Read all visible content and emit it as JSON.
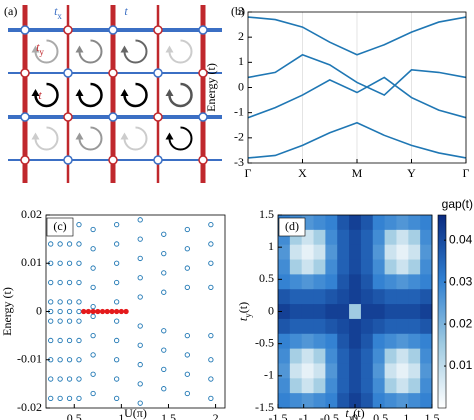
{
  "diagram": {
    "panel_label": "(a)",
    "hop_labels": [
      {
        "base": "t",
        "sub": "x"
      },
      {
        "base": "t"
      },
      {
        "base": "t",
        "sub": "y"
      },
      {
        "base": "t"
      }
    ]
  },
  "chart_data": [
    {
      "type": "line",
      "panel_label": "(b)",
      "ylabel": "Energy (t)",
      "x": [
        0,
        0.5,
        1,
        1.5,
        2,
        2.5,
        3,
        3.5,
        4
      ],
      "xlim": [
        0,
        4
      ],
      "xticks": [
        {
          "value": 0,
          "label": "Γ"
        },
        {
          "value": 1,
          "label": "X"
        },
        {
          "value": 2,
          "label": "M"
        },
        {
          "value": 3,
          "label": "Y"
        },
        {
          "value": 4,
          "label": "Γ"
        }
      ],
      "xgrid": true,
      "ylim": [
        -3,
        3
      ],
      "yticks": [
        -3,
        -2,
        -1,
        0,
        1,
        2,
        3
      ],
      "series": [
        {
          "color": "#1f77b4",
          "values": [
            2.8,
            2.7,
            2.4,
            1.8,
            1.3,
            1.7,
            2.2,
            2.6,
            2.8
          ]
        },
        {
          "color": "#1f77b4",
          "values": [
            0.4,
            0.6,
            1.3,
            0.9,
            0.2,
            -0.3,
            0.7,
            0.6,
            0.4
          ]
        },
        {
          "color": "#1f77b4",
          "values": [
            -1.2,
            -0.8,
            -0.3,
            0.3,
            -0.2,
            0.4,
            -0.4,
            -0.9,
            -1.2
          ]
        },
        {
          "color": "#1f77b4",
          "values": [
            -2.8,
            -2.7,
            -2.3,
            -1.8,
            -1.4,
            -1.9,
            -2.3,
            -2.6,
            -2.8
          ]
        }
      ]
    },
    {
      "type": "scatter",
      "panel_label": "(c)",
      "ylabel": "Energy (t)",
      "xlabel": "U(π)",
      "xlim": [
        0.2,
        2.1
      ],
      "xticks": [
        0.5,
        1,
        1.5,
        2
      ],
      "ylim": [
        -0.02,
        0.02
      ],
      "yticks": [
        -0.02,
        -0.01,
        0,
        0.01,
        0.02
      ],
      "series": [
        {
          "color": "#1f77b4",
          "x": 0.25,
          "values": [
            -0.018,
            -0.014,
            -0.01,
            -0.006,
            -0.002,
            0,
            0.002,
            0.006,
            0.01,
            0.014,
            0.018
          ]
        },
        {
          "color": "#1f77b4",
          "x": 0.35,
          "values": [
            -0.018,
            -0.014,
            -0.01,
            -0.006,
            -0.002,
            0,
            0.002,
            0.006,
            0.01,
            0.014,
            0.018
          ]
        },
        {
          "color": "#1f77b4",
          "x": 0.45,
          "values": [
            -0.018,
            -0.014,
            -0.01,
            -0.006,
            -0.002,
            0,
            0.002,
            0.006,
            0.01,
            0.014,
            0.018
          ]
        },
        {
          "color": "#1f77b4",
          "x": 0.55,
          "values": [
            -0.018,
            -0.014,
            -0.01,
            -0.006,
            -0.002,
            0,
            0.002,
            0.006,
            0.01,
            0.014,
            0.018
          ]
        },
        {
          "color": "#1f77b4",
          "x": 0.7,
          "values": [
            -0.017,
            -0.013,
            -0.009,
            -0.005,
            -0.001,
            0.001,
            0.005,
            0.009,
            0.013,
            0.017
          ]
        },
        {
          "color": "#1f77b4",
          "x": 0.95,
          "values": [
            -0.018,
            -0.014,
            -0.01,
            -0.006,
            -0.002,
            0.002,
            0.006,
            0.01,
            0.014,
            0.018
          ]
        },
        {
          "color": "#1f77b4",
          "x": 1.2,
          "values": [
            -0.019,
            -0.015,
            -0.011,
            -0.007,
            -0.003,
            0.003,
            0.007,
            0.011,
            0.015,
            0.019
          ]
        },
        {
          "color": "#1f77b4",
          "x": 1.45,
          "values": [
            -0.016,
            -0.012,
            -0.008,
            -0.004,
            0.004,
            0.008,
            0.012,
            0.016
          ]
        },
        {
          "color": "#1f77b4",
          "x": 1.7,
          "values": [
            -0.017,
            -0.013,
            -0.009,
            -0.005,
            0.005,
            0.009,
            0.013,
            0.017
          ]
        },
        {
          "color": "#1f77b4",
          "x": 1.95,
          "values": [
            -0.018,
            -0.014,
            -0.01,
            -0.005,
            0.005,
            0.01,
            0.014,
            0.018
          ]
        },
        {
          "color": "#e41a1c",
          "filled": true,
          "x": [
            0.6,
            0.65,
            0.7,
            0.75,
            0.8,
            0.85,
            0.9,
            0.95,
            1,
            1.05
          ],
          "values": [
            0,
            0,
            0,
            0,
            0,
            0,
            0,
            0,
            0,
            0
          ]
        }
      ]
    },
    {
      "type": "heatmap",
      "panel_label": "(d)",
      "xlabel": {
        "base": "t",
        "sub": "x",
        "unit": "(t)"
      },
      "ylabel": {
        "base": "t",
        "sub": "y",
        "unit": "(t)"
      },
      "xlim": [
        -1.5,
        1.5
      ],
      "ylim": [
        -1.5,
        1.5
      ],
      "xticks": [
        -1.5,
        -1,
        -0.5,
        0,
        0.5,
        1,
        1.5
      ],
      "yticks": [
        -1.5,
        -1,
        -0.5,
        0,
        0.5,
        1,
        1.5
      ],
      "zlabel": "gap(t)",
      "zlim": [
        0,
        0.046
      ],
      "zticks": [
        0.01,
        0.02,
        0.03,
        0.04
      ],
      "colormap": [
        "#ffffff",
        "#9ecae1",
        "#2f7fd1",
        "#0a2a80"
      ],
      "z": [
        [
          0.03,
          0.028,
          0.026,
          0.028,
          0.03,
          0.038,
          0.042,
          0.038,
          0.03,
          0.028,
          0.026,
          0.028,
          0.03
        ],
        [
          0.028,
          0.014,
          0.008,
          0.014,
          0.028,
          0.036,
          0.04,
          0.036,
          0.028,
          0.014,
          0.008,
          0.014,
          0.028
        ],
        [
          0.026,
          0.008,
          0.004,
          0.008,
          0.026,
          0.036,
          0.04,
          0.036,
          0.026,
          0.008,
          0.004,
          0.008,
          0.026
        ],
        [
          0.028,
          0.014,
          0.008,
          0.014,
          0.028,
          0.036,
          0.04,
          0.036,
          0.028,
          0.014,
          0.008,
          0.014,
          0.028
        ],
        [
          0.03,
          0.028,
          0.026,
          0.028,
          0.03,
          0.038,
          0.042,
          0.038,
          0.03,
          0.028,
          0.026,
          0.028,
          0.03
        ],
        [
          0.038,
          0.036,
          0.036,
          0.036,
          0.038,
          0.04,
          0.042,
          0.04,
          0.038,
          0.036,
          0.036,
          0.036,
          0.038
        ],
        [
          0.042,
          0.04,
          0.04,
          0.04,
          0.042,
          0.042,
          0.015,
          0.042,
          0.042,
          0.04,
          0.04,
          0.04,
          0.042
        ],
        [
          0.038,
          0.036,
          0.036,
          0.036,
          0.038,
          0.04,
          0.042,
          0.04,
          0.038,
          0.036,
          0.036,
          0.036,
          0.038
        ],
        [
          0.03,
          0.028,
          0.026,
          0.028,
          0.03,
          0.038,
          0.042,
          0.038,
          0.03,
          0.028,
          0.026,
          0.028,
          0.03
        ],
        [
          0.028,
          0.014,
          0.008,
          0.014,
          0.028,
          0.036,
          0.04,
          0.036,
          0.028,
          0.014,
          0.008,
          0.014,
          0.028
        ],
        [
          0.026,
          0.008,
          0.004,
          0.008,
          0.026,
          0.036,
          0.04,
          0.036,
          0.026,
          0.008,
          0.004,
          0.008,
          0.026
        ],
        [
          0.028,
          0.014,
          0.008,
          0.014,
          0.028,
          0.036,
          0.04,
          0.036,
          0.028,
          0.014,
          0.008,
          0.014,
          0.028
        ],
        [
          0.03,
          0.028,
          0.026,
          0.028,
          0.03,
          0.038,
          0.042,
          0.038,
          0.03,
          0.028,
          0.026,
          0.028,
          0.03
        ]
      ]
    }
  ]
}
